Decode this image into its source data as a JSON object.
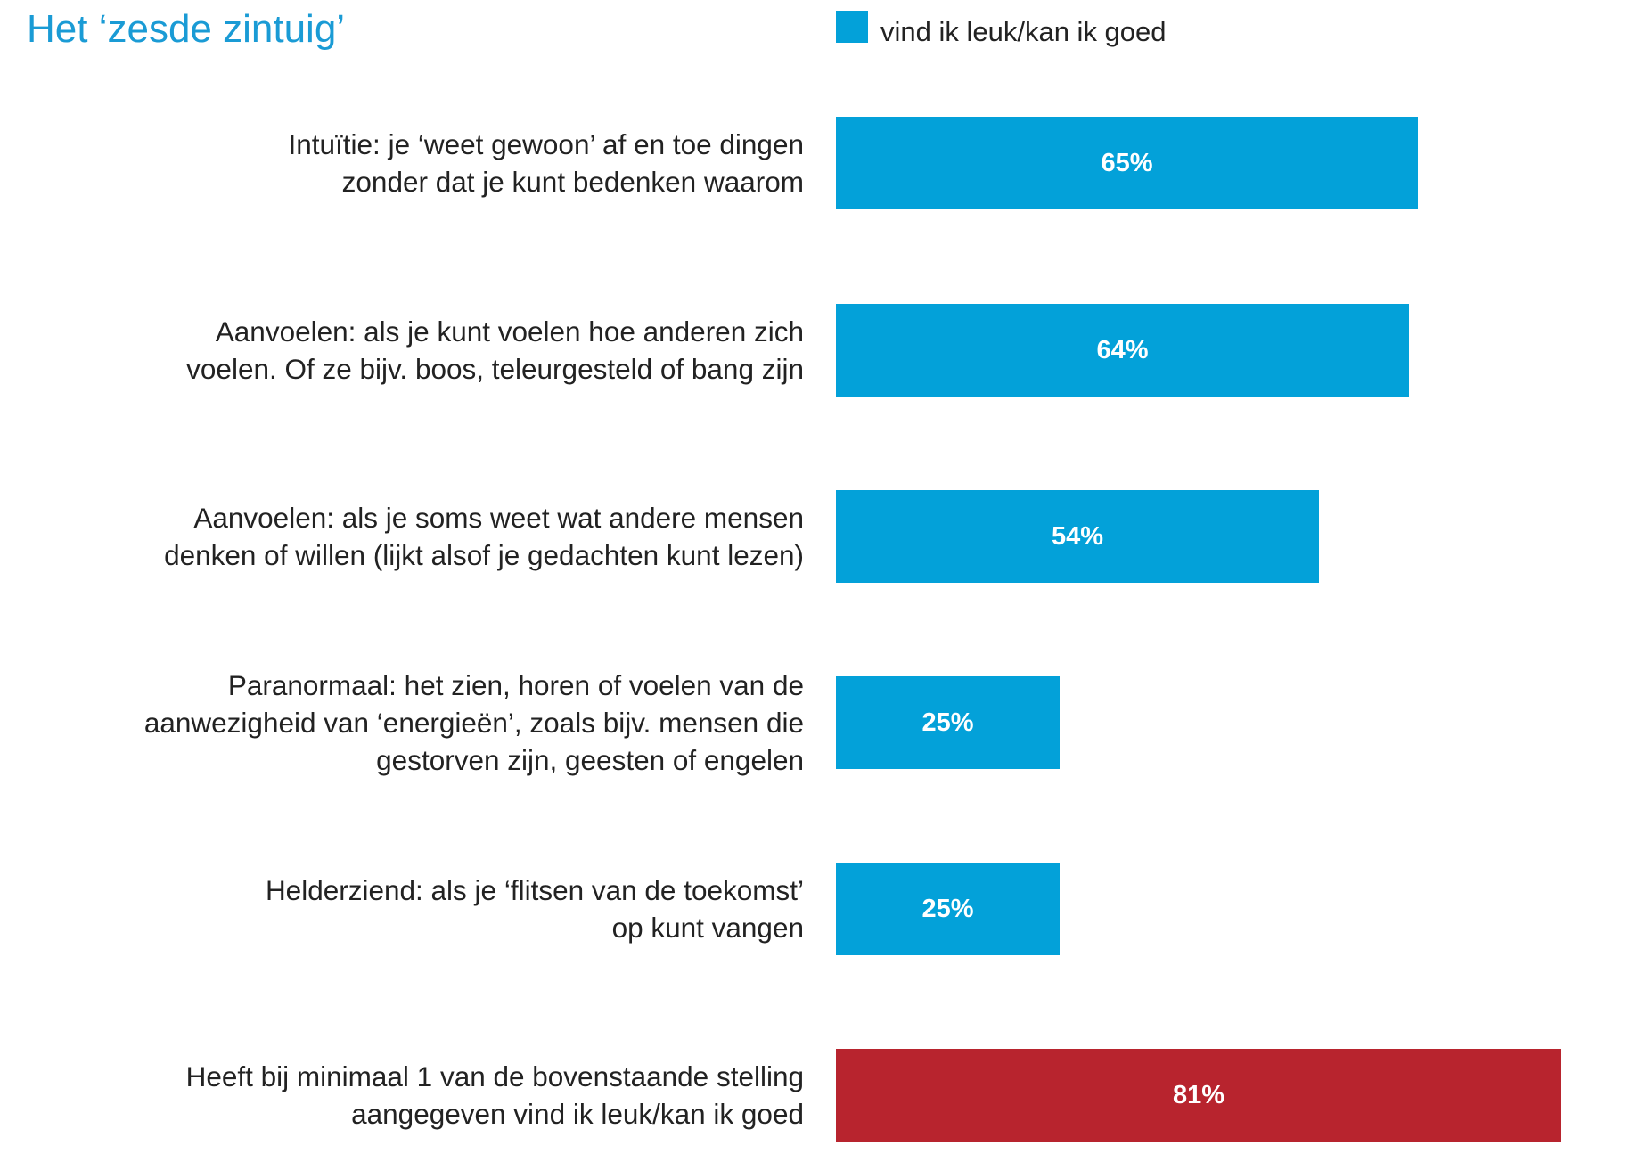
{
  "chart_data": {
    "type": "bar",
    "orientation": "horizontal",
    "title": "Het ‘zesde zintuig’",
    "legend": {
      "label": "vind ik leuk/kan ik goed",
      "color": "#03a1d9",
      "placement": "top"
    },
    "xlim": [
      0,
      100
    ],
    "unit": "%",
    "grid": false,
    "categories": [
      [
        "Intuïtie: je ‘weet gewoon’ af en toe dingen",
        "zonder dat je kunt bedenken waarom"
      ],
      [
        "Aanvoelen: als je kunt voelen hoe anderen zich",
        "voelen. Of ze bijv. boos, teleurgesteld of bang zijn"
      ],
      [
        "Aanvoelen: als je soms weet wat andere mensen",
        "denken of willen (lijkt alsof je gedachten kunt lezen)"
      ],
      [
        "Paranormaal: het zien, horen of voelen van de",
        "aanwezigheid van ‘energieën’, zoals bijv. mensen die",
        "gestorven zijn, geesten of engelen"
      ],
      [
        "Helderziend: als je ‘flitsen van de toekomst’",
        "op kunt vangen"
      ],
      [
        "Heeft bij minimaal 1 van de bovenstaande stelling",
        "aangegeven vind ik leuk/kan ik goed"
      ]
    ],
    "values": [
      65,
      64,
      54,
      25,
      25,
      81
    ],
    "value_labels": [
      "65%",
      "64%",
      "54%",
      "25%",
      "25%",
      "81%"
    ],
    "bar_colors": [
      "#03a1d9",
      "#03a1d9",
      "#03a1d9",
      "#03a1d9",
      "#03a1d9",
      "#b8242e"
    ]
  }
}
